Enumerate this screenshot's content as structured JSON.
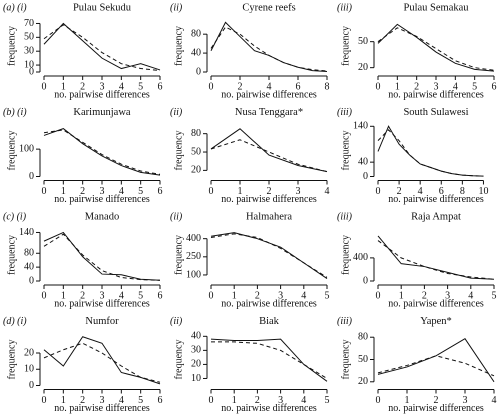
{
  "chart_data": [
    {
      "type": "line",
      "label": "(a) (i)",
      "title": "Pulau Sekudu",
      "x_label": "no. pairwise differences",
      "y_label": "frequency",
      "x": [
        0,
        1,
        2,
        3,
        4,
        5,
        6
      ],
      "xlim": [
        0,
        6
      ],
      "xticks": [
        0,
        1,
        2,
        3,
        4,
        5,
        6
      ],
      "ylim": [
        0,
        75
      ],
      "yticks": [
        0,
        10,
        30,
        50,
        70
      ],
      "series": [
        {
          "color": "#111",
          "dashed": false,
          "values": [
            40,
            70,
            45,
            20,
            5,
            12,
            3
          ]
        },
        {
          "color": "#111",
          "dashed": true,
          "values": [
            48,
            68,
            50,
            28,
            12,
            5,
            2
          ]
        }
      ]
    },
    {
      "type": "line",
      "label": "(ii)",
      "title": "Cyrene reefs",
      "x_label": "no. pairwise differences",
      "y_label": "frequency",
      "x": [
        0,
        1,
        2,
        3,
        4,
        5,
        6,
        7,
        8
      ],
      "xlim": [
        0,
        8
      ],
      "xticks": [
        0,
        2,
        4,
        6,
        8
      ],
      "ylim": [
        0,
        110
      ],
      "yticks": [
        0,
        40,
        80
      ],
      "series": [
        {
          "color": "#111",
          "dashed": false,
          "values": [
            45,
            105,
            75,
            45,
            35,
            20,
            10,
            3,
            1
          ]
        },
        {
          "color": "#111",
          "dashed": true,
          "values": [
            50,
            95,
            80,
            55,
            35,
            20,
            10,
            5,
            2
          ]
        }
      ]
    },
    {
      "type": "line",
      "label": "(iii)",
      "title": "Pulau Semakau",
      "x_label": "no. pairwise differences",
      "y_label": "frequency",
      "x": [
        0,
        1,
        2,
        3,
        4,
        5,
        6
      ],
      "xlim": [
        0,
        6
      ],
      "xticks": [
        0,
        1,
        2,
        3,
        4,
        5,
        6
      ],
      "ylim": [
        15,
        75
      ],
      "yticks": [
        20,
        50
      ],
      "series": [
        {
          "color": "#111",
          "dashed": false,
          "values": [
            48,
            70,
            55,
            38,
            25,
            18,
            16
          ]
        },
        {
          "color": "#111",
          "dashed": true,
          "values": [
            50,
            66,
            56,
            42,
            28,
            20,
            17
          ]
        }
      ]
    },
    {
      "type": "line",
      "label": "(b) (i)",
      "title": "Karimunjawa",
      "x_label": "no. pairwise differences",
      "y_label": "frequency",
      "x": [
        0,
        1,
        2,
        3,
        4,
        5,
        6
      ],
      "xlim": [
        0,
        6
      ],
      "xticks": [
        0,
        1,
        2,
        3,
        4,
        5,
        6
      ],
      "ylim": [
        0,
        190
      ],
      "yticks": [
        0,
        100
      ],
      "series": [
        {
          "color": "#111",
          "dashed": false,
          "values": [
            150,
            175,
            120,
            75,
            40,
            15,
            5
          ]
        },
        {
          "color": "#111",
          "dashed": true,
          "values": [
            160,
            170,
            125,
            80,
            45,
            20,
            8
          ]
        }
      ]
    },
    {
      "type": "line",
      "label": "(ii)",
      "title": "Nusa Tenggara*",
      "x_label": "no. pairwise differences",
      "y_label": "frequency",
      "x": [
        0,
        1,
        2,
        3,
        4
      ],
      "xlim": [
        0,
        4
      ],
      "xticks": [
        0,
        1,
        2,
        3,
        4
      ],
      "ylim": [
        10,
        95
      ],
      "yticks": [
        20,
        50,
        80
      ],
      "series": [
        {
          "color": "#111",
          "dashed": false,
          "values": [
            55,
            88,
            45,
            28,
            18
          ]
        },
        {
          "color": "#111",
          "dashed": true,
          "values": [
            55,
            70,
            50,
            30,
            18
          ]
        }
      ]
    },
    {
      "type": "line",
      "label": "(iii)",
      "title": "South Sulawesi",
      "x_label": "no. pairwise differences",
      "y_label": "frequency",
      "x": [
        0,
        1,
        2,
        3,
        4,
        5,
        6,
        7,
        8,
        9,
        10
      ],
      "xlim": [
        0,
        11
      ],
      "xticks": [
        0,
        2,
        4,
        6,
        8,
        10
      ],
      "ylim": [
        0,
        145
      ],
      "yticks": [
        0,
        40,
        140
      ],
      "series": [
        {
          "color": "#111",
          "dashed": false,
          "values": [
            70,
            140,
            90,
            60,
            35,
            25,
            15,
            8,
            4,
            2,
            1
          ]
        },
        {
          "color": "#111",
          "dashed": true,
          "values": [
            100,
            130,
            100,
            60,
            35,
            25,
            15,
            8,
            4,
            2,
            1
          ]
        }
      ]
    },
    {
      "type": "line",
      "label": "(c) (i)",
      "title": "Manado",
      "x_label": "no. pairwise differences",
      "y_label": "frequency",
      "x": [
        0,
        1,
        2,
        3,
        4,
        5,
        6
      ],
      "xlim": [
        0,
        6
      ],
      "xticks": [
        0,
        1,
        2,
        3,
        4,
        5,
        6
      ],
      "ylim": [
        0,
        150
      ],
      "yticks": [
        0,
        40,
        80,
        140
      ],
      "series": [
        {
          "color": "#111",
          "dashed": false,
          "values": [
            115,
            140,
            70,
            20,
            18,
            5,
            2
          ]
        },
        {
          "color": "#111",
          "dashed": true,
          "values": [
            100,
            135,
            75,
            30,
            10,
            4,
            2
          ]
        }
      ]
    },
    {
      "type": "line",
      "label": "(ii)",
      "title": "Halmahera",
      "x_label": "no. pairwise differences",
      "y_label": "frequency",
      "x": [
        0,
        1,
        2,
        3,
        4,
        5
      ],
      "xlim": [
        0,
        5
      ],
      "xticks": [
        0,
        1,
        2,
        3,
        4,
        5
      ],
      "ylim": [
        50,
        480
      ],
      "yticks": [
        100,
        250,
        400
      ],
      "series": [
        {
          "color": "#111",
          "dashed": false,
          "values": [
            420,
            450,
            400,
            330,
            200,
            70
          ]
        },
        {
          "color": "#111",
          "dashed": true,
          "values": [
            410,
            440,
            410,
            320,
            200,
            80
          ]
        }
      ]
    },
    {
      "type": "line",
      "label": "(iii)",
      "title": "Raja Ampat",
      "x_label": "no. pairwise differences",
      "y_label": "frequency",
      "x": [
        0,
        1,
        2,
        3,
        4,
        5
      ],
      "xlim": [
        0,
        5
      ],
      "xticks": [
        0,
        1,
        2,
        3,
        4,
        5
      ],
      "ylim": [
        0,
        900
      ],
      "yticks": [
        0,
        400
      ],
      "series": [
        {
          "color": "#111",
          "dashed": false,
          "values": [
            780,
            300,
            250,
            150,
            50,
            30
          ]
        },
        {
          "color": "#111",
          "dashed": true,
          "values": [
            700,
            400,
            250,
            130,
            70,
            30
          ]
        }
      ]
    },
    {
      "type": "line",
      "label": "(d) (i)",
      "title": "Numfor",
      "x_label": "no. pairwise differences",
      "y_label": "frequency",
      "x": [
        0,
        1,
        2,
        3,
        4,
        5,
        6
      ],
      "xlim": [
        0,
        6
      ],
      "xticks": [
        0,
        1,
        2,
        3,
        4,
        5,
        6
      ],
      "ylim": [
        0,
        32
      ],
      "yticks": [
        0,
        10,
        20
      ],
      "series": [
        {
          "color": "#111",
          "dashed": false,
          "values": [
            22,
            12,
            30,
            26,
            8,
            5,
            1
          ]
        },
        {
          "color": "#111",
          "dashed": true,
          "values": [
            17,
            22,
            26,
            20,
            12,
            5,
            2
          ]
        }
      ]
    },
    {
      "type": "line",
      "label": "(ii)",
      "title": "Biak",
      "x_label": "no. pairwise differences",
      "y_label": "frequency",
      "x": [
        0,
        1,
        2,
        3,
        4,
        5
      ],
      "xlim": [
        0,
        5
      ],
      "xticks": [
        0,
        1,
        2,
        3,
        4,
        5
      ],
      "ylim": [
        5,
        42
      ],
      "yticks": [
        10,
        20,
        30,
        40
      ],
      "series": [
        {
          "color": "#111",
          "dashed": false,
          "values": [
            38,
            37,
            37,
            38,
            20,
            8
          ]
        },
        {
          "color": "#111",
          "dashed": true,
          "values": [
            36,
            36,
            35,
            30,
            20,
            10
          ]
        }
      ]
    },
    {
      "type": "line",
      "label": "(iii)",
      "title": "Yapen*",
      "x_label": "no. pairwise differences",
      "y_label": "frequency",
      "x": [
        0,
        1,
        2,
        3,
        4
      ],
      "xlim": [
        0,
        4
      ],
      "xticks": [
        0,
        1,
        2,
        3,
        4
      ],
      "ylim": [
        15,
        85
      ],
      "yticks": [
        20,
        50,
        80
      ],
      "series": [
        {
          "color": "#111",
          "dashed": false,
          "values": [
            30,
            40,
            55,
            78,
            20
          ]
        },
        {
          "color": "#111",
          "dashed": true,
          "values": [
            32,
            42,
            55,
            45,
            28
          ]
        }
      ]
    }
  ]
}
